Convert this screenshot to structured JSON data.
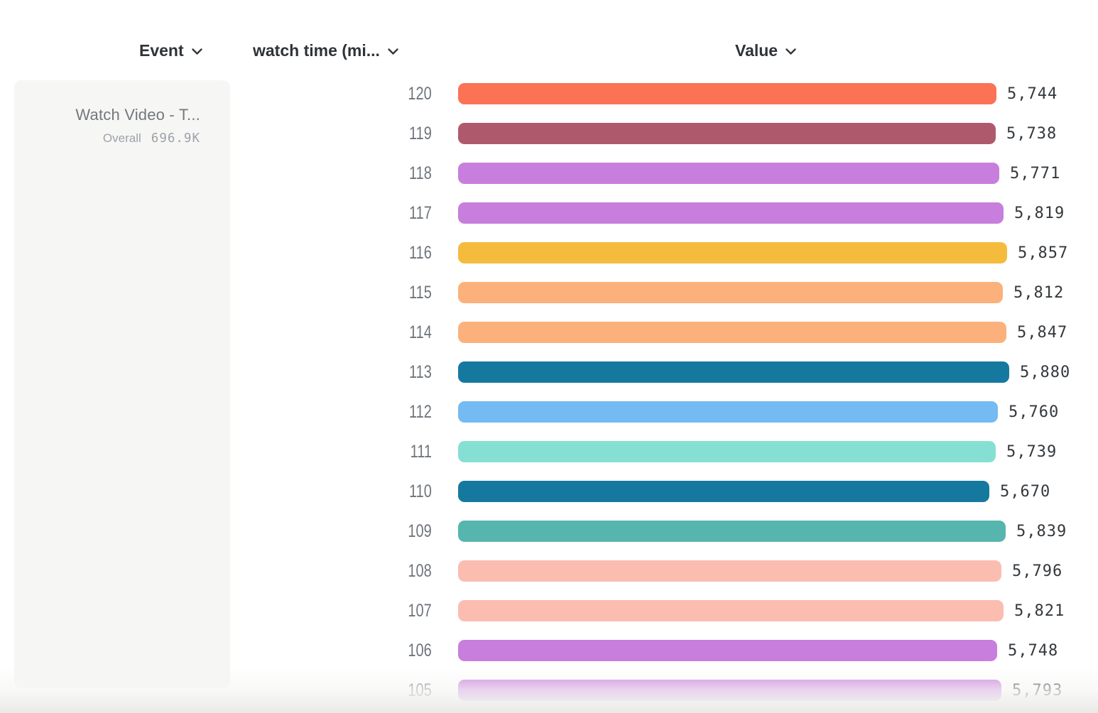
{
  "header": {
    "event": {
      "label": "Event"
    },
    "watch_time": {
      "label": "watch time (mi..."
    },
    "value": {
      "label": "Value"
    }
  },
  "panel": {
    "title": "Watch Video - T...",
    "overall_label": "Overall",
    "overall_value": "696.9K"
  },
  "chart_data": {
    "type": "bar",
    "orientation": "horizontal",
    "categories": [
      "120",
      "119",
      "118",
      "117",
      "116",
      "115",
      "114",
      "113",
      "112",
      "111",
      "110",
      "109",
      "108",
      "107",
      "106",
      "105"
    ],
    "values": [
      5744,
      5738,
      5771,
      5819,
      5857,
      5812,
      5847,
      5880,
      5760,
      5739,
      5670,
      5839,
      5796,
      5821,
      5748,
      5793
    ],
    "value_labels": [
      "5,744",
      "5,738",
      "5,771",
      "5,819",
      "5,857",
      "5,812",
      "5,847",
      "5,880",
      "5,760",
      "5,739",
      "5,670",
      "5,839",
      "5,796",
      "5,821",
      "5,748",
      "5,793"
    ],
    "bar_colors": [
      "#fb7255",
      "#af5a6c",
      "#c77edc",
      "#c77edc",
      "#f5bb3d",
      "#fcb17c",
      "#fcb17c",
      "#15799f",
      "#73bbf2",
      "#86dfd3",
      "#15799f",
      "#56b6ad",
      "#fcbdb1",
      "#fcbdb1",
      "#c77edc",
      "#c77edc"
    ],
    "xlim": [
      0,
      5880
    ],
    "grid": false,
    "legend": "none",
    "colors": {
      "header_text": "#2e3338",
      "row_label_text": "#6e747b",
      "value_text": "#33383c",
      "panel_bg": "#f6f6f5",
      "panel_title_text": "#74787d",
      "panel_stats_text": "#9da2a9"
    }
  }
}
